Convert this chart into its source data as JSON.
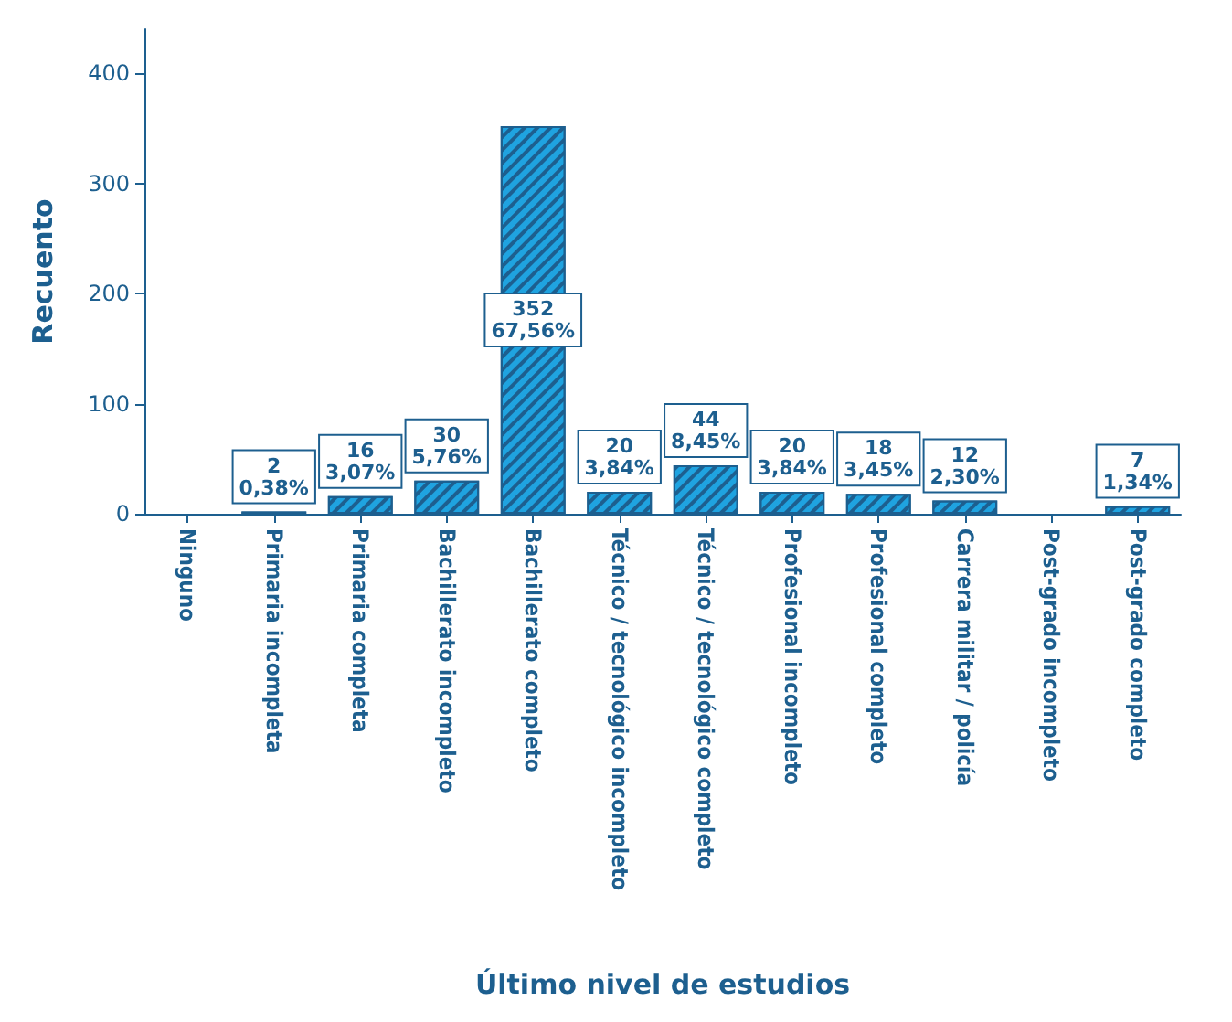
{
  "chart_data": {
    "type": "bar",
    "xlabel": "Último nivel de estudios",
    "ylabel": "Recuento",
    "categories": [
      "Ninguno",
      "Primaria incompleta",
      "Primaria completa",
      "Bachillerato incompleto",
      "Bachillerato completo",
      "Técnico / tecnológico incompleto",
      "Técnico / tecnológico completo",
      "Profesional incompleto",
      "Profesional completo",
      "Carrera militar / policía",
      "Post-grado incompleto",
      "Post-grado completo"
    ],
    "values": [
      0,
      2,
      16,
      30,
      352,
      20,
      44,
      20,
      18,
      12,
      0,
      7
    ],
    "value_labels": [
      null,
      "2\n0,38%",
      "16\n3,07%",
      "30\n5,76%",
      "352\n67,56%",
      "20\n3,84%",
      "44\n8,45%",
      "20\n3,84%",
      "18\n3,45%",
      "12\n2,30%",
      null,
      "7\n1,34%"
    ],
    "color": "#1fa3e0",
    "ylim": [
      0,
      440
    ],
    "yticks": [
      0,
      100,
      200,
      300,
      400
    ],
    "grid": false
  }
}
